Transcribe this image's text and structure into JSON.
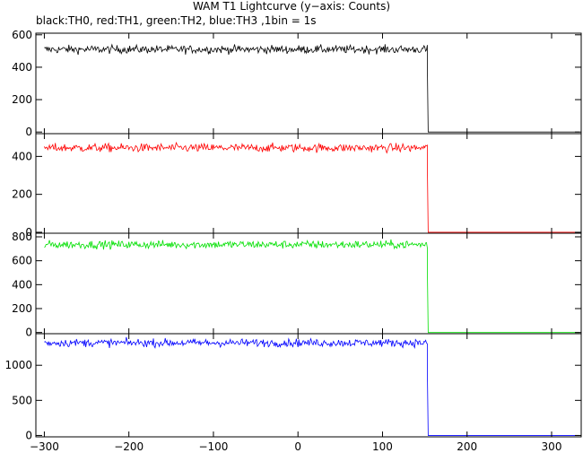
{
  "figure": {
    "title": "WAM T1 Lightcurve (y−axis: Counts)",
    "subtitle": "black:TH0, red:TH1, green:TH2, blue:TH3 ,1bin = 1s"
  },
  "chart_data": [
    {
      "type": "line",
      "series": [
        {
          "color": "#000000",
          "level": 510,
          "noise": 18,
          "decay_end": 420
        }
      ],
      "step_x": 153,
      "end_value": 0,
      "xlim": [
        -310,
        335
      ],
      "ylim": [
        -10,
        610
      ],
      "yticks": [
        "0",
        "200",
        "400",
        "600"
      ],
      "ytick_values": [
        0,
        200,
        400,
        600
      ],
      "grid": false
    },
    {
      "type": "line",
      "series": [
        {
          "color": "#ff0000",
          "level": 445,
          "noise": 16,
          "decay_end": 360
        }
      ],
      "step_x": 153,
      "end_value": 0,
      "xlim": [
        -310,
        335
      ],
      "ylim": [
        -5,
        520
      ],
      "yticks": [
        "0",
        "200",
        "400"
      ],
      "ytick_values": [
        0,
        200,
        400
      ],
      "grid": false
    },
    {
      "type": "line",
      "series": [
        {
          "color": "#00e000",
          "level": 735,
          "noise": 24,
          "decay_end": 550
        }
      ],
      "step_x": 153,
      "end_value": 0,
      "xlim": [
        -310,
        335
      ],
      "ylim": [
        -10,
        830
      ],
      "yticks": [
        "0",
        "200",
        "400",
        "600",
        "800"
      ],
      "ytick_values": [
        0,
        200,
        400,
        600,
        800
      ],
      "grid": false
    },
    {
      "type": "line",
      "series": [
        {
          "color": "#0000ff",
          "level": 1320,
          "noise": 40,
          "decay_end": 950
        }
      ],
      "step_x": 153,
      "end_value": 0,
      "xlim": [
        -310,
        335
      ],
      "ylim": [
        -20,
        1450
      ],
      "yticks": [
        "0",
        "500",
        "1000"
      ],
      "ytick_values": [
        0,
        500,
        1000
      ],
      "xticks": [
        "−300",
        "−200",
        "−100",
        "0",
        "100",
        "200",
        "300"
      ],
      "xtick_values": [
        -300,
        -200,
        -100,
        0,
        100,
        200,
        300
      ],
      "grid": false
    }
  ]
}
